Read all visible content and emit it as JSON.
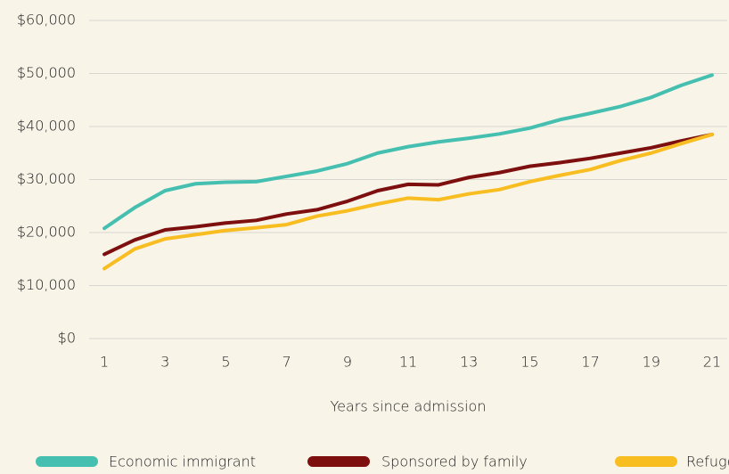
{
  "chart_data": {
    "type": "line",
    "x_label": "Years since admission",
    "x": [
      1,
      2,
      3,
      4,
      5,
      6,
      7,
      8,
      9,
      10,
      11,
      12,
      13,
      14,
      15,
      16,
      17,
      18,
      19,
      20,
      21
    ],
    "xlim": [
      0.5,
      21.5
    ],
    "xticks": [
      1,
      3,
      5,
      7,
      9,
      11,
      13,
      15,
      17,
      19,
      21
    ],
    "ylim": [
      0,
      60000
    ],
    "yticks": [
      {
        "value": 0,
        "label": "$0"
      },
      {
        "value": 10000,
        "label": "$10,000"
      },
      {
        "value": 20000,
        "label": "$20,000"
      },
      {
        "value": 30000,
        "label": "$30,000"
      },
      {
        "value": 40000,
        "label": "$40,000"
      },
      {
        "value": 50000,
        "label": "$50,000"
      },
      {
        "value": 60000,
        "label": "$60,000"
      }
    ],
    "grid": true,
    "legend": "bottom",
    "series": [
      {
        "name": "Economic immigrant",
        "color": "#45bfb0",
        "values": [
          20800,
          24700,
          27900,
          29200,
          29500,
          29600,
          30600,
          31600,
          33000,
          35000,
          36200,
          37100,
          37800,
          38600,
          39700,
          41300,
          42500,
          43800,
          45500,
          47800,
          49700
        ]
      },
      {
        "name": "Sponsored by family",
        "color": "#7d0f0f",
        "values": [
          15900,
          18600,
          20500,
          21100,
          21800,
          22300,
          23500,
          24300,
          25900,
          27900,
          29100,
          29000,
          30400,
          31300,
          32500,
          33200,
          34000,
          35000,
          36000,
          37300,
          38500
        ]
      },
      {
        "name": "Refugee",
        "color": "#f8bd21",
        "values": [
          13200,
          16900,
          18800,
          19600,
          20400,
          20900,
          21500,
          23100,
          24100,
          25400,
          26500,
          26200,
          27300,
          28100,
          29600,
          30800,
          31900,
          33600,
          35000,
          36800,
          38500
        ]
      }
    ]
  }
}
